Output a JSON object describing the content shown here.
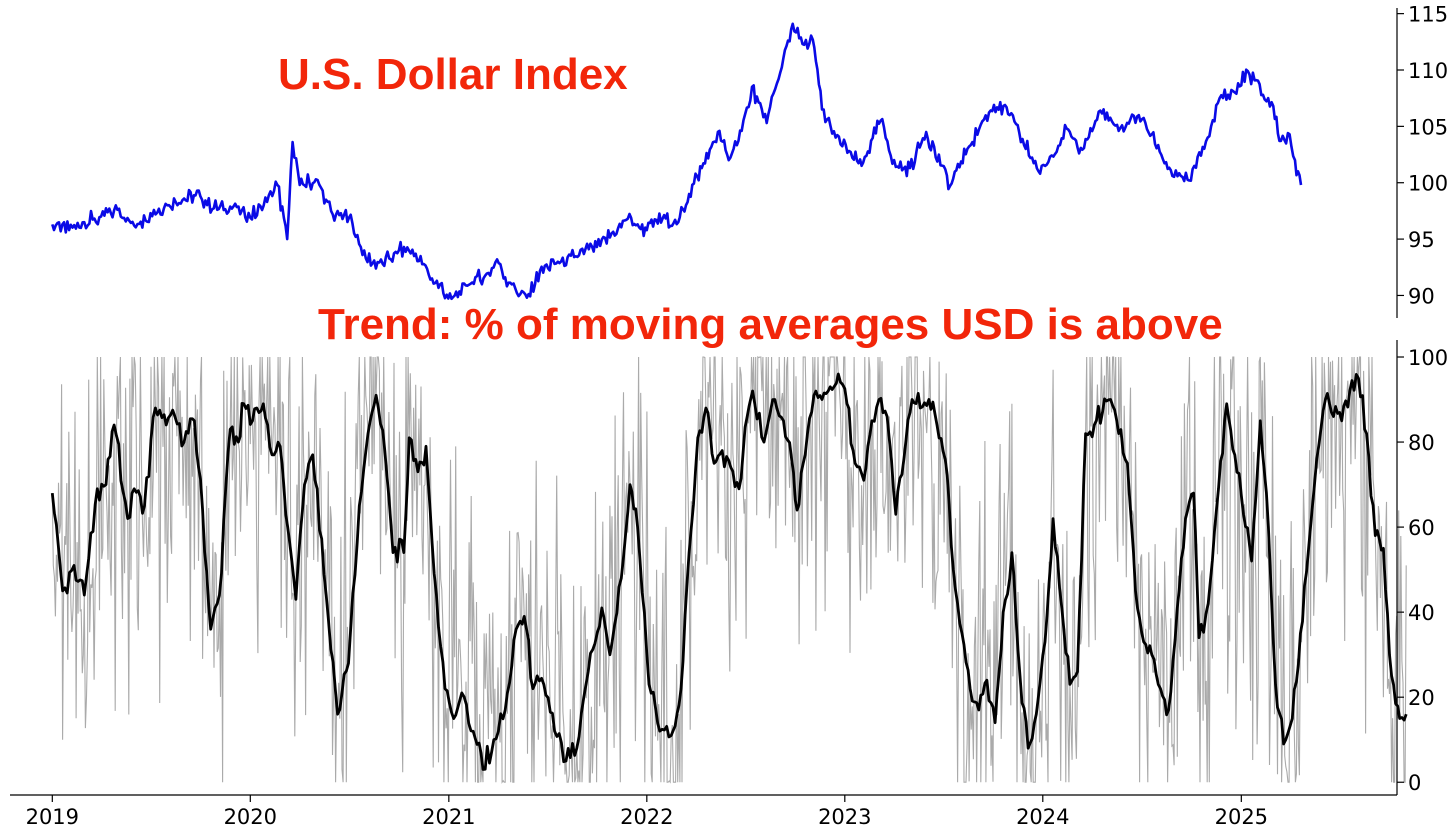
{
  "chart_data": [
    {
      "type": "line",
      "title": "U.S. Dollar Index",
      "ylim": [
        88,
        115.5
      ],
      "yticks": [
        90,
        95,
        100,
        105,
        110,
        115
      ],
      "colors": {
        "dxy": "#0a0ae6"
      },
      "series": [
        {
          "values": [
            [
              "2019-01-01",
              96.3
            ],
            [
              "2019-02-01",
              95.8
            ],
            [
              "2019-03-01",
              96.5
            ],
            [
              "2019-04-01",
              97.0
            ],
            [
              "2019-05-01",
              97.6
            ],
            [
              "2019-06-01",
              96.2
            ],
            [
              "2019-07-01",
              97.3
            ],
            [
              "2019-08-01",
              98.0
            ],
            [
              "2019-09-01",
              98.6
            ],
            [
              "2019-10-01",
              98.8
            ],
            [
              "2019-11-01",
              97.6
            ],
            [
              "2019-12-01",
              97.9
            ],
            [
              "2020-01-01",
              96.9
            ],
            [
              "2020-02-01",
              98.3
            ],
            [
              "2020-02-20",
              99.8
            ],
            [
              "2020-03-09",
              95.0
            ],
            [
              "2020-03-19",
              103.6
            ],
            [
              "2020-04-01",
              99.8
            ],
            [
              "2020-05-01",
              100.3
            ],
            [
              "2020-06-01",
              97.2
            ],
            [
              "2020-07-01",
              96.9
            ],
            [
              "2020-08-01",
              93.3
            ],
            [
              "2020-09-01",
              92.8
            ],
            [
              "2020-10-01",
              94.0
            ],
            [
              "2020-11-01",
              93.7
            ],
            [
              "2020-12-01",
              91.5
            ],
            [
              "2021-01-06",
              89.7
            ],
            [
              "2021-02-01",
              90.9
            ],
            [
              "2021-03-15",
              92.0
            ],
            [
              "2021-03-31",
              93.2
            ],
            [
              "2021-04-15",
              91.6
            ],
            [
              "2021-05-25",
              89.8
            ],
            [
              "2021-06-18",
              92.2
            ],
            [
              "2021-07-15",
              92.8
            ],
            [
              "2021-08-20",
              93.4
            ],
            [
              "2021-10-01",
              94.3
            ],
            [
              "2021-11-24",
              96.7
            ],
            [
              "2021-12-15",
              96.3
            ],
            [
              "2022-01-01",
              95.8
            ],
            [
              "2022-01-30",
              96.8
            ],
            [
              "2022-02-28",
              96.5
            ],
            [
              "2022-03-20",
              99.0
            ],
            [
              "2022-04-30",
              103.2
            ],
            [
              "2022-05-15",
              104.6
            ],
            [
              "2022-06-01",
              102.0
            ],
            [
              "2022-06-25",
              104.6
            ],
            [
              "2022-07-14",
              108.5
            ],
            [
              "2022-08-10",
              105.3
            ],
            [
              "2022-09-01",
              109.2
            ],
            [
              "2022-09-27",
              114.1
            ],
            [
              "2022-10-15",
              112.3
            ],
            [
              "2022-11-03",
              112.7
            ],
            [
              "2022-11-20",
              106.5
            ],
            [
              "2022-12-15",
              104.0
            ],
            [
              "2023-01-15",
              102.2
            ],
            [
              "2023-02-01",
              101.5
            ],
            [
              "2023-03-08",
              105.5
            ],
            [
              "2023-04-05",
              101.4
            ],
            [
              "2023-05-01",
              101.3
            ],
            [
              "2023-05-31",
              104.5
            ],
            [
              "2023-07-14",
              99.7
            ],
            [
              "2023-08-15",
              103.0
            ],
            [
              "2023-10-03",
              106.9
            ],
            [
              "2023-11-01",
              106.0
            ],
            [
              "2023-12-27",
              100.8
            ],
            [
              "2024-02-14",
              104.8
            ],
            [
              "2024-03-08",
              102.6
            ],
            [
              "2024-04-16",
              106.4
            ],
            [
              "2024-05-20",
              104.6
            ],
            [
              "2024-06-26",
              106.0
            ],
            [
              "2024-07-20",
              104.3
            ],
            [
              "2024-08-27",
              100.6
            ],
            [
              "2024-09-27",
              100.2
            ],
            [
              "2024-10-31",
              104.0
            ],
            [
              "2024-11-22",
              107.5
            ],
            [
              "2024-12-20",
              108.0
            ],
            [
              "2025-01-13",
              109.9
            ],
            [
              "2025-02-10",
              107.8
            ],
            [
              "2025-03-01",
              106.8
            ],
            [
              "2025-03-15",
              103.7
            ],
            [
              "2025-03-31",
              104.3
            ],
            [
              "2025-04-10",
              102.0
            ],
            [
              "2025-04-21",
              99.8
            ]
          ]
        }
      ]
    },
    {
      "type": "line",
      "title": "Trend: % of moving averages USD is above",
      "ylim": [
        -3,
        104
      ],
      "yticks": [
        0,
        20,
        40,
        60,
        80,
        100
      ],
      "xlim": [
        "2018-10-15",
        "2025-10-15"
      ],
      "xticks": [
        "2019",
        "2020",
        "2021",
        "2022",
        "2023",
        "2024",
        "2025"
      ],
      "colors": {
        "raw": "#aaaaaa",
        "smooth": "#000000"
      },
      "series": [
        {
          "values": [
            [
              "2019-01-01",
              68
            ],
            [
              "2019-01-20",
              45
            ],
            [
              "2019-02-10",
              51
            ],
            [
              "2019-03-01",
              44
            ],
            [
              "2019-03-25",
              69
            ],
            [
              "2019-04-10",
              70
            ],
            [
              "2019-04-25",
              84
            ],
            [
              "2019-05-20",
              62
            ],
            [
              "2019-06-01",
              69
            ],
            [
              "2019-06-20",
              65
            ],
            [
              "2019-07-10",
              88
            ],
            [
              "2019-07-30",
              84
            ],
            [
              "2019-08-15",
              86
            ],
            [
              "2019-09-01",
              80
            ],
            [
              "2019-09-20",
              85
            ],
            [
              "2019-10-05",
              64
            ],
            [
              "2019-10-20",
              36
            ],
            [
              "2019-11-05",
              44
            ],
            [
              "2019-11-25",
              83
            ],
            [
              "2019-12-10",
              80
            ],
            [
              "2019-12-20",
              89
            ],
            [
              "2020-01-05",
              85
            ],
            [
              "2020-01-25",
              89
            ],
            [
              "2020-02-10",
              77
            ],
            [
              "2020-02-25",
              79
            ],
            [
              "2020-03-10",
              60
            ],
            [
              "2020-03-25",
              43
            ],
            [
              "2020-04-10",
              70
            ],
            [
              "2020-04-25",
              77
            ],
            [
              "2020-05-20",
              44
            ],
            [
              "2020-06-10",
              16
            ],
            [
              "2020-06-30",
              28
            ],
            [
              "2020-07-20",
              65
            ],
            [
              "2020-08-05",
              82
            ],
            [
              "2020-08-20",
              91
            ],
            [
              "2020-09-05",
              78
            ],
            [
              "2020-09-20",
              54
            ],
            [
              "2020-10-10",
              54
            ],
            [
              "2020-10-20",
              81
            ],
            [
              "2020-11-05",
              73
            ],
            [
              "2020-11-20",
              79
            ],
            [
              "2020-12-05",
              49
            ],
            [
              "2020-12-25",
              22
            ],
            [
              "2021-01-10",
              15
            ],
            [
              "2021-01-25",
              21
            ],
            [
              "2021-02-15",
              12
            ],
            [
              "2021-03-05",
              3
            ],
            [
              "2021-03-25",
              10
            ],
            [
              "2021-04-15",
              17
            ],
            [
              "2021-05-05",
              36
            ],
            [
              "2021-05-20",
              39
            ],
            [
              "2021-06-05",
              22
            ],
            [
              "2021-06-25",
              23
            ],
            [
              "2021-07-15",
              12
            ],
            [
              "2021-08-05",
              5
            ],
            [
              "2021-08-25",
              8
            ],
            [
              "2021-09-15",
              26
            ],
            [
              "2021-10-10",
              41
            ],
            [
              "2021-10-25",
              30
            ],
            [
              "2021-11-15",
              48
            ],
            [
              "2021-12-01",
              70
            ],
            [
              "2021-12-15",
              60
            ],
            [
              "2022-01-05",
              23
            ],
            [
              "2022-01-25",
              12
            ],
            [
              "2022-02-15",
              11
            ],
            [
              "2022-03-05",
              22
            ],
            [
              "2022-03-20",
              54
            ],
            [
              "2022-04-05",
              81
            ],
            [
              "2022-04-20",
              88
            ],
            [
              "2022-05-05",
              75
            ],
            [
              "2022-05-20",
              78
            ],
            [
              "2022-06-05",
              74
            ],
            [
              "2022-06-20",
              69
            ],
            [
              "2022-07-05",
              86
            ],
            [
              "2022-07-15",
              92
            ],
            [
              "2022-08-05",
              80
            ],
            [
              "2022-08-25",
              90
            ],
            [
              "2022-09-10",
              85
            ],
            [
              "2022-09-25",
              76
            ],
            [
              "2022-10-05",
              64
            ],
            [
              "2022-10-20",
              77
            ],
            [
              "2022-11-05",
              91
            ],
            [
              "2022-11-20",
              90
            ],
            [
              "2022-12-05",
              93
            ],
            [
              "2022-12-20",
              96
            ],
            [
              "2023-01-05",
              89
            ],
            [
              "2023-01-20",
              75
            ],
            [
              "2023-02-05",
              71
            ],
            [
              "2023-02-20",
              85
            ],
            [
              "2023-03-05",
              90
            ],
            [
              "2023-03-20",
              86
            ],
            [
              "2023-04-05",
              63
            ],
            [
              "2023-04-20",
              76
            ],
            [
              "2023-05-05",
              90
            ],
            [
              "2023-05-20",
              88
            ],
            [
              "2023-06-05",
              90
            ],
            [
              "2023-06-20",
              84
            ],
            [
              "2023-07-05",
              76
            ],
            [
              "2023-07-20",
              50
            ],
            [
              "2023-08-05",
              35
            ],
            [
              "2023-08-20",
              22
            ],
            [
              "2023-09-05",
              17
            ],
            [
              "2023-09-20",
              24
            ],
            [
              "2023-10-05",
              14
            ],
            [
              "2023-10-20",
              40
            ],
            [
              "2023-11-05",
              54
            ],
            [
              "2023-11-20",
              25
            ],
            [
              "2023-12-05",
              8
            ],
            [
              "2023-12-20",
              16
            ],
            [
              "2024-01-05",
              33
            ],
            [
              "2024-01-20",
              62
            ],
            [
              "2024-02-05",
              41
            ],
            [
              "2024-02-20",
              23
            ],
            [
              "2024-03-05",
              26
            ],
            [
              "2024-03-20",
              82
            ],
            [
              "2024-04-05",
              84
            ],
            [
              "2024-04-20",
              87
            ],
            [
              "2024-05-05",
              90
            ],
            [
              "2024-05-20",
              82
            ],
            [
              "2024-06-05",
              75
            ],
            [
              "2024-06-20",
              45
            ],
            [
              "2024-07-05",
              33
            ],
            [
              "2024-07-20",
              30
            ],
            [
              "2024-08-05",
              22
            ],
            [
              "2024-08-20",
              17
            ],
            [
              "2024-09-05",
              41
            ],
            [
              "2024-09-20",
              62
            ],
            [
              "2024-10-05",
              68
            ],
            [
              "2024-10-15",
              34
            ],
            [
              "2024-11-01",
              42
            ],
            [
              "2024-11-20",
              69
            ],
            [
              "2024-12-05",
              89
            ],
            [
              "2024-12-20",
              77
            ],
            [
              "2025-01-05",
              63
            ],
            [
              "2025-01-20",
              52
            ],
            [
              "2025-02-05",
              85
            ],
            [
              "2025-02-20",
              60
            ],
            [
              "2025-03-05",
              23
            ],
            [
              "2025-03-20",
              9
            ],
            [
              "2025-04-05",
              15
            ],
            [
              "2025-04-20",
              35
            ],
            [
              "2025-05-05",
              55
            ],
            [
              "2025-05-20",
              76
            ],
            [
              "2025-06-05",
              90
            ],
            [
              "2025-06-20",
              86
            ],
            [
              "2025-07-05",
              85
            ],
            [
              "2025-07-20",
              92
            ],
            [
              "2025-08-05",
              95
            ],
            [
              "2025-08-20",
              82
            ],
            [
              "2025-09-05",
              58
            ],
            [
              "2025-09-20",
              55
            ],
            [
              "2025-10-05",
              25
            ],
            [
              "2025-10-20",
              15
            ],
            [
              "2025-11-01",
              16
            ]
          ]
        }
      ]
    }
  ]
}
